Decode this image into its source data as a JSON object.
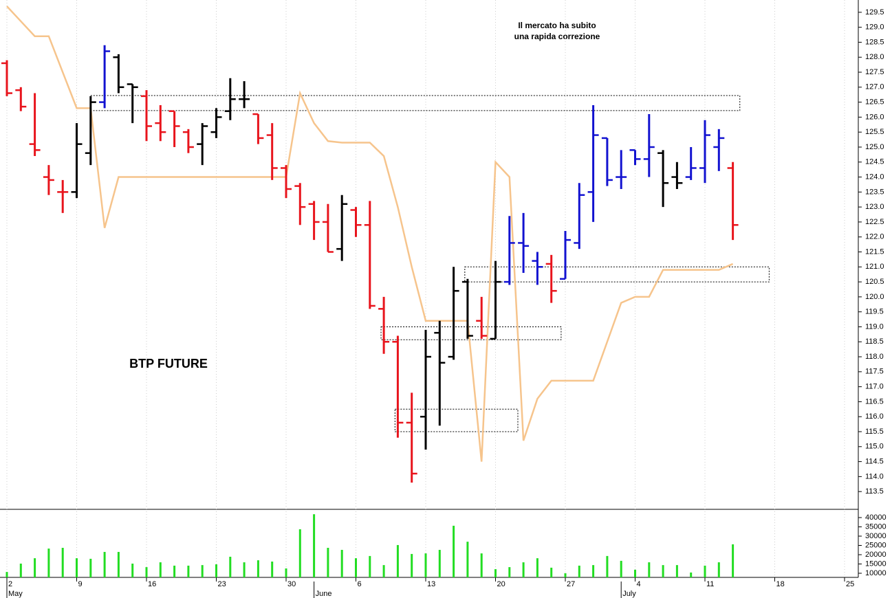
{
  "chart_data": {
    "type": "ohlc",
    "annotations": [
      "Il mercato ha subito",
      "una rapida correzione"
    ],
    "label": "BTP FUTURE",
    "categories": [
      "2",
      null,
      null,
      null,
      null,
      "9",
      null,
      null,
      null,
      null,
      "16",
      null,
      null,
      null,
      null,
      "23",
      null,
      null,
      null,
      null,
      "30",
      null,
      null,
      null,
      null,
      "6",
      null,
      null,
      null,
      null,
      "13",
      null,
      null,
      null,
      null,
      "20",
      null,
      null,
      null,
      null,
      "27",
      null,
      null,
      null,
      null,
      "4",
      null,
      null,
      null,
      null,
      "11",
      null,
      null,
      null,
      null,
      "18",
      null,
      null,
      null,
      null,
      "25"
    ],
    "months": [
      {
        "label": "May",
        "at": 0
      },
      {
        "label": "June",
        "at": 22
      },
      {
        "label": "July",
        "at": 44
      }
    ],
    "open": [
      127.8,
      126.9,
      125.1,
      124.0,
      123.5,
      123.5,
      124.8,
      126.5,
      128.0,
      127.1,
      126.7,
      125.8,
      126.2,
      125.5,
      125.1,
      125.5,
      126.2,
      126.6,
      126.1,
      125.4,
      124.3,
      123.7,
      123.1,
      122.5,
      121.6,
      122.9,
      122.4,
      119.6,
      118.5,
      115.8,
      116.0,
      118.8,
      118.0,
      120.5,
      119.2,
      118.6,
      120.5,
      121.8,
      121.2,
      121.1,
      120.6,
      121.8,
      123.5,
      125.3,
      124.0,
      124.9,
      124.6,
      124.8,
      124.0,
      124.0,
      124.3,
      125.0,
      124.3,
      null,
      null,
      null,
      null,
      null,
      null,
      null,
      null
    ],
    "high": [
      127.9,
      127.0,
      126.8,
      124.4,
      123.9,
      125.8,
      126.7,
      128.4,
      128.1,
      127.1,
      126.9,
      126.4,
      126.2,
      125.6,
      125.8,
      126.3,
      127.3,
      127.2,
      126.1,
      125.8,
      124.4,
      123.8,
      123.2,
      123.1,
      123.4,
      123.0,
      123.2,
      120.0,
      118.7,
      116.8,
      118.9,
      119.2,
      121.0,
      120.6,
      120.0,
      121.2,
      122.7,
      122.8,
      121.5,
      121.4,
      122.2,
      123.8,
      126.4,
      125.3,
      124.9,
      124.9,
      126.1,
      124.9,
      124.5,
      125.0,
      125.9,
      125.6,
      124.5,
      null,
      null,
      null,
      null,
      null,
      null,
      null,
      null
    ],
    "low": [
      126.7,
      126.2,
      124.7,
      123.4,
      122.8,
      123.3,
      124.4,
      126.3,
      126.8,
      125.8,
      125.2,
      125.2,
      125.0,
      124.8,
      124.4,
      125.3,
      125.9,
      126.3,
      125.1,
      123.9,
      123.3,
      122.4,
      121.9,
      121.5,
      121.2,
      122.0,
      119.6,
      118.1,
      115.3,
      113.8,
      114.9,
      115.7,
      117.9,
      118.6,
      118.6,
      118.6,
      120.4,
      120.8,
      120.4,
      119.8,
      120.6,
      121.6,
      122.5,
      123.7,
      123.6,
      124.4,
      124.0,
      123.0,
      123.6,
      123.9,
      123.8,
      124.2,
      121.9,
      null,
      null,
      null,
      null,
      null,
      null,
      null,
      null
    ],
    "close": [
      126.8,
      126.35,
      124.9,
      123.9,
      123.5,
      125.1,
      126.5,
      128.2,
      127.0,
      127.0,
      125.7,
      125.5,
      125.7,
      125.0,
      125.7,
      126.0,
      126.6,
      126.6,
      125.3,
      124.3,
      123.6,
      123.0,
      122.5,
      121.5,
      123.1,
      122.4,
      119.7,
      118.5,
      115.8,
      114.1,
      118.0,
      117.8,
      120.2,
      118.7,
      118.7,
      120.5,
      121.8,
      121.7,
      121.0,
      120.2,
      121.9,
      123.4,
      125.4,
      123.9,
      124.0,
      124.6,
      125.0,
      123.8,
      123.8,
      124.3,
      125.4,
      125.3,
      122.4,
      null,
      null,
      null,
      null,
      null,
      null,
      null,
      null
    ],
    "bar_colors": [
      "#e8141c",
      "#e8141c",
      "#e8141c",
      "#e8141c",
      "#e8141c",
      "#000000",
      "#000000",
      "#1212d0",
      "#000000",
      "#000000",
      "#e8141c",
      "#e8141c",
      "#e8141c",
      "#e8141c",
      "#000000",
      "#000000",
      "#000000",
      "#000000",
      "#e8141c",
      "#e8141c",
      "#e8141c",
      "#e8141c",
      "#e8141c",
      "#e8141c",
      "#000000",
      "#e8141c",
      "#e8141c",
      "#e8141c",
      "#e8141c",
      "#e8141c",
      "#000000",
      "#000000",
      "#000000",
      "#000000",
      "#e8141c",
      "#000000",
      "#1212d0",
      "#1212d0",
      "#1212d0",
      "#e8141c",
      "#1212d0",
      "#1212d0",
      "#1212d0",
      "#1212d0",
      "#1212d0",
      "#1212d0",
      "#1212d0",
      "#000000",
      "#000000",
      "#1212d0",
      "#1212d0",
      "#1212d0",
      "#e8141c",
      null,
      null,
      null,
      null,
      null,
      null,
      null,
      null
    ],
    "line": {
      "color": "#f6c48c",
      "values": [
        129.7,
        129.2,
        128.7,
        128.7,
        127.5,
        126.3,
        126.3,
        122.3,
        124.0,
        124.0,
        124.0,
        124.0,
        124.0,
        124.0,
        124.0,
        124.0,
        124.0,
        124.0,
        124.0,
        124.0,
        124.0,
        126.8,
        125.8,
        125.2,
        125.15,
        125.15,
        125.15,
        124.7,
        123.0,
        121.0,
        119.2,
        119.2,
        119.2,
        119.2,
        114.5,
        124.5,
        124.0,
        115.2,
        116.6,
        117.2,
        117.2,
        117.2,
        117.2,
        118.5,
        119.8,
        120.0,
        120.0,
        120.9,
        120.9,
        120.9,
        120.9,
        120.9,
        121.1,
        null,
        null,
        null,
        null,
        null,
        null,
        null,
        null
      ]
    },
    "boxes": [
      {
        "x0": 6,
        "x1": 52.5,
        "low": 126.22,
        "high": 126.72
      },
      {
        "x0": 32.8,
        "x1": 54.6,
        "low": 120.5,
        "high": 121.0
      },
      {
        "x0": 26.8,
        "x1": 39.7,
        "low": 118.57,
        "high": 119.0
      },
      {
        "x0": 27.8,
        "x1": 36.6,
        "low": 115.5,
        "high": 116.25
      }
    ],
    "ylim": [
      112.93,
      129.91
    ],
    "yticks": [
      113.5,
      {
        "value": 114,
        "label": "114.0"
      },
      114.5,
      {
        "value": 115,
        "label": "115.0"
      },
      115.5,
      {
        "value": 116,
        "label": "116.0"
      },
      116.5,
      {
        "value": 117,
        "label": "117.0"
      },
      117.5,
      {
        "value": 118,
        "label": "118.0"
      },
      118.5,
      {
        "value": 119,
        "label": "119.0"
      },
      119.5,
      {
        "value": 120,
        "label": "120.0"
      },
      120.5,
      {
        "value": 121,
        "label": "121.0"
      },
      121.5,
      {
        "value": 122,
        "label": "122.0"
      },
      122.5,
      {
        "value": 123,
        "label": "123.0"
      },
      123.5,
      {
        "value": 124,
        "label": "124.0"
      },
      124.5,
      {
        "value": 125,
        "label": "125.0"
      },
      125.5,
      {
        "value": 126,
        "label": "126.0"
      },
      126.5,
      {
        "value": 127,
        "label": "127.0"
      },
      127.5,
      {
        "value": 128,
        "label": "128.0"
      },
      128.5,
      {
        "value": 129,
        "label": "129.0"
      },
      129.5
    ],
    "volume": {
      "color": "#22dd22",
      "values": [
        10700,
        15200,
        18100,
        23300,
        23700,
        18100,
        17800,
        21500,
        21500,
        15200,
        13300,
        15900,
        14100,
        14100,
        14400,
        14800,
        18900,
        15900,
        17000,
        16300,
        12600,
        33700,
        41800,
        23700,
        22600,
        18100,
        19300,
        14400,
        25200,
        20400,
        20700,
        22600,
        35600,
        27000,
        20700,
        12200,
        13300,
        15900,
        18100,
        13000,
        10000,
        14100,
        14400,
        19300,
        16700,
        11900,
        15900,
        14400,
        14400,
        10400,
        14100,
        15900,
        25600,
        null,
        null,
        null,
        null,
        null,
        null,
        null,
        null
      ],
      "ylim": [
        7778,
        44074
      ],
      "yticks": [
        10000,
        15000,
        20000,
        25000,
        30000,
        35000,
        40000
      ]
    }
  }
}
